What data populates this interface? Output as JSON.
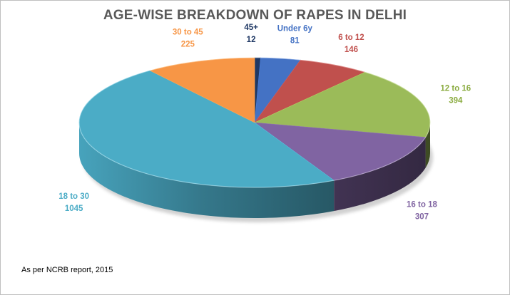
{
  "chart_data": {
    "type": "pie",
    "title": "AGE-WISE BREAKDOWN OF RAPES IN DELHI",
    "categories": [
      "45+",
      "Under 6y",
      "6 to 12",
      "12 to 16",
      "16 to 18",
      "18 to 30",
      "30 to 45"
    ],
    "values": [
      12,
      81,
      146,
      394,
      307,
      1045,
      225
    ],
    "value_labels": [
      "12",
      "81",
      "146",
      "394",
      "307",
      "1045",
      "225"
    ],
    "colors": [
      "#1f3864",
      "#4472c4",
      "#c0504d",
      "#9bbb59",
      "#8064a2",
      "#4bacc6",
      "#f79646"
    ],
    "legend": "none",
    "style": "3d"
  },
  "footnote": "As per NCRB report, 2015"
}
